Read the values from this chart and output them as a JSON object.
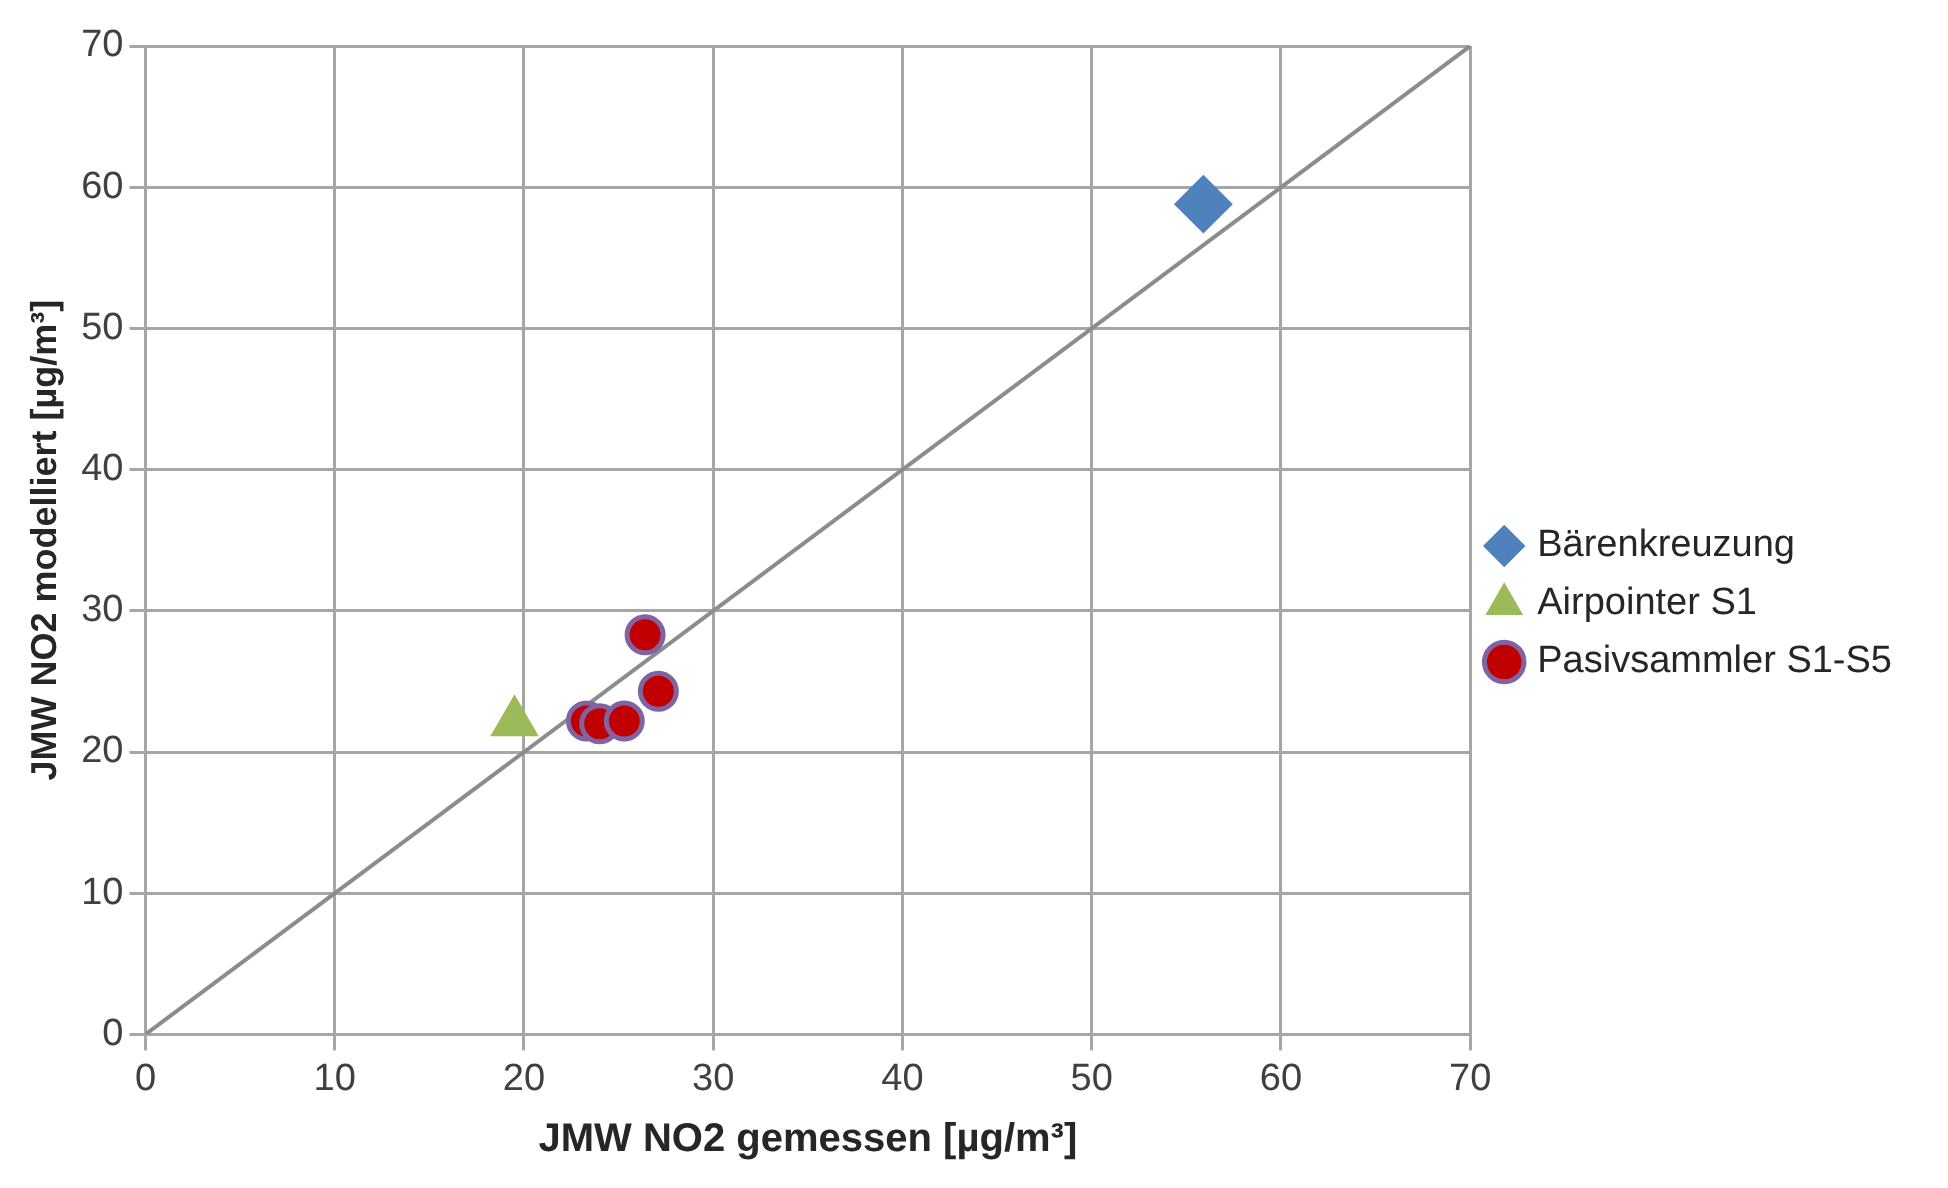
{
  "chart_data": {
    "type": "scatter",
    "xlabel": "JMW NO2 gemessen [µg/m³]",
    "ylabel": "JMW NO2 modelliert [µg/m³]",
    "xlim": [
      0,
      70
    ],
    "xticks": [
      0,
      10,
      20,
      30,
      40,
      50,
      60,
      70
    ],
    "ylim": [
      0,
      70
    ],
    "yticks": [
      0,
      10,
      20,
      30,
      40,
      50,
      60,
      70
    ],
    "grid": true,
    "legend": "right",
    "series": [
      {
        "type": "line",
        "color": "#8c8c8c",
        "marker": "none",
        "x": [
          0,
          70
        ],
        "values": [
          0,
          70
        ]
      },
      {
        "name": "Bärenkreuzung",
        "color": "#4f81bd",
        "marker": "diamond",
        "x": [
          55.9
        ],
        "values": [
          58.8
        ]
      },
      {
        "name": "Airpointer S1",
        "color": "#9bbb59",
        "marker": "triangle",
        "x": [
          19.5
        ],
        "values": [
          22.1
        ]
      },
      {
        "name": "Pasivsammler S1-S5",
        "color": "#c00000",
        "marker": "circle",
        "x": [
          26.4,
          27.1,
          23.3,
          24.0,
          25.3
        ],
        "values": [
          28.3,
          24.3,
          22.2,
          22.0,
          22.2
        ]
      }
    ]
  }
}
